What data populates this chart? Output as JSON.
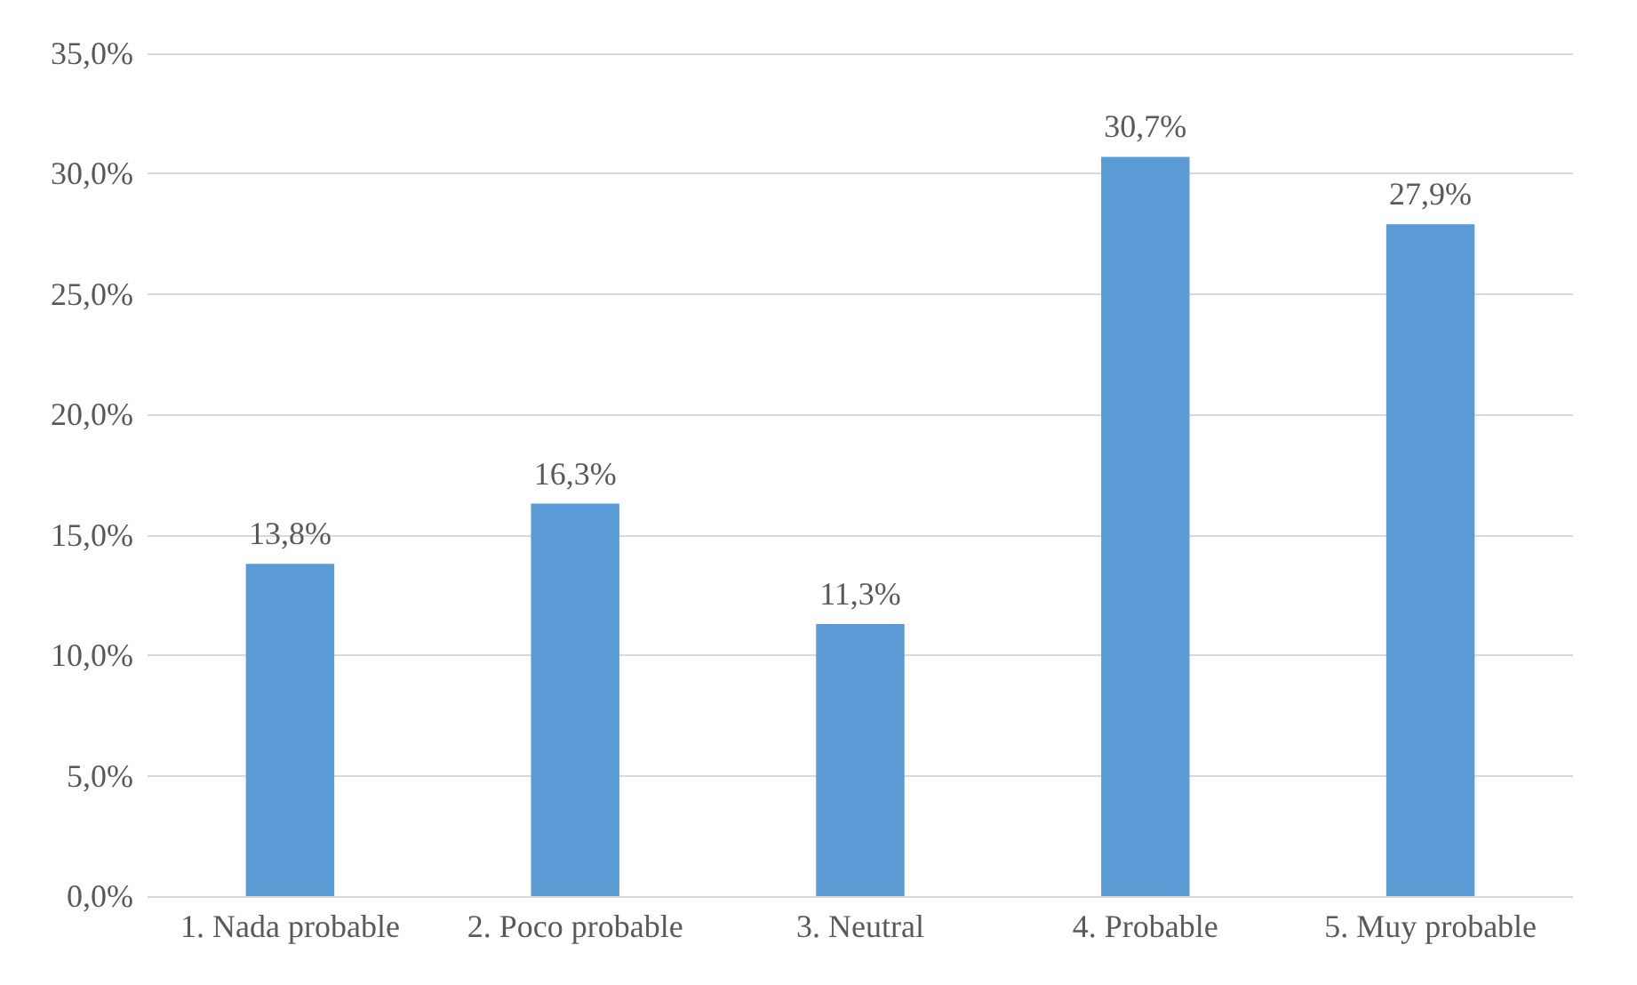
{
  "chart_data": {
    "type": "bar",
    "categories": [
      "1. Nada probable",
      "2. Poco probable",
      "3. Neutral",
      "4. Probable",
      "5. Muy probable"
    ],
    "values": [
      13.8,
      16.3,
      11.3,
      30.7,
      27.9
    ],
    "value_labels": [
      "13,8%",
      "16,3%",
      "11,3%",
      "30,7%",
      "27,9%"
    ],
    "color": "#5b9bd5",
    "ylim": [
      0,
      35
    ],
    "yticks": [
      {
        "value": 0,
        "label": "0,0%"
      },
      {
        "value": 5,
        "label": "5,0%"
      },
      {
        "value": 10,
        "label": "10,0%"
      },
      {
        "value": 15,
        "label": "15,0%"
      },
      {
        "value": 20,
        "label": "20,0%"
      },
      {
        "value": 25,
        "label": "25,0%"
      },
      {
        "value": 30,
        "label": "30,0%"
      },
      {
        "value": 35,
        "label": "35,0%"
      }
    ],
    "grid": "y"
  }
}
